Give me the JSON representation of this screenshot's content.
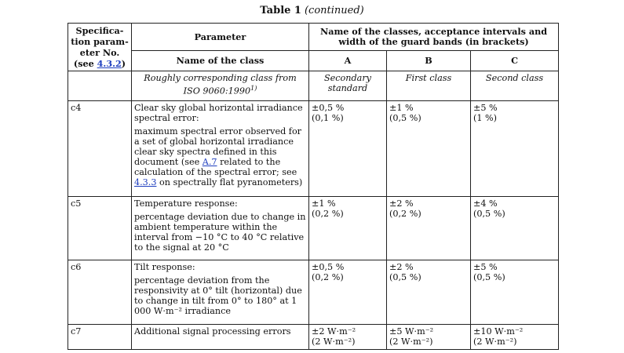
{
  "caption": {
    "title": "Table 1",
    "continued": "(continued)"
  },
  "header": {
    "spec_no_label": "Specifica-\ntion param-\neter No.\n(see ",
    "spec_no_link": "4.3.2",
    "spec_no_close": ")",
    "parameter": "Parameter",
    "classes_heading": "Name of the classes, acceptance intervals and width of the guard bands (in brackets)",
    "class_name_label": "Name of the class",
    "class_a": "A",
    "class_b": "B",
    "class_c": "C",
    "iso_label": "Roughly corresponding class from ISO 9060:1990",
    "iso_sup": "1)",
    "iso_a": "Secondary standard",
    "iso_b": "First class",
    "iso_c": "Second class"
  },
  "rows": [
    {
      "no": "c4",
      "title": "Clear sky global horizontal irradiance spectral error:",
      "desc_pre": "maximum spectral error observed for a set of global horizontal irradiance clear sky spectra defined in this document (see ",
      "link1": "A.7",
      "desc_mid": " related to the calculation of the spectral error; see ",
      "link2": "4.3.3",
      "desc_post": " on spectrally flat pyranometers)",
      "a": "±0,5 %\n(0,1 %)",
      "b": "±1 %\n(0,5 %)",
      "c": "±5 %\n(1 %)"
    },
    {
      "no": "c5",
      "title": "Temperature response:",
      "desc": "percentage deviation due to change in ambient temperature within the interval from −10 °C to 40 °C relative to the signal at 20 °C",
      "a": "±1 %\n(0,2 %)",
      "b": "±2 %\n(0,2 %)",
      "c": "±4 %\n(0,5 %)"
    },
    {
      "no": "c6",
      "title": "Tilt response:",
      "desc": "percentage deviation from the responsivity at 0° tilt (horizontal) due to change in tilt from 0° to 180° at 1 000 W·m⁻² irradiance",
      "a": "±0,5 %\n(0,2 %)",
      "b": "±2 %\n(0,5 %)",
      "c": "±5 %\n(0,5 %)"
    },
    {
      "no": "c7",
      "title": "Additional signal processing errors",
      "a": "±2 W·m⁻²\n(2 W·m⁻²)",
      "b": "±5 W·m⁻²\n(2 W·m⁻²)",
      "c": "±10 W·m⁻²\n(2 W·m⁻²)"
    }
  ]
}
